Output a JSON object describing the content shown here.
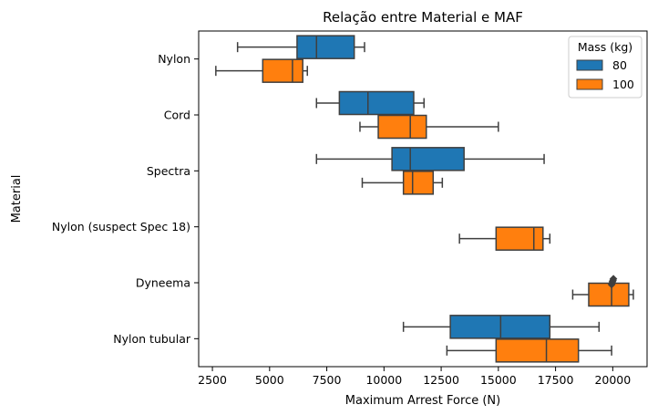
{
  "chart_data": {
    "type": "box",
    "orientation": "horizontal",
    "title": "Relação entre Material e MAF",
    "xlabel": "Maximum Arrest Force (N)",
    "ylabel": "Material",
    "xlim": [
      1900,
      21500
    ],
    "xticks": [
      2500,
      5000,
      7500,
      10000,
      12500,
      15000,
      17500,
      20000
    ],
    "categories": [
      "Nylon",
      "Cord",
      "Spectra",
      "Nylon (suspect Spec 18)",
      "Dyneema",
      "Nylon tubular"
    ],
    "legend": {
      "title": "Mass (kg)",
      "placement": "top-right"
    },
    "series": [
      {
        "name": "80",
        "color": "#1f77b4",
        "boxes": [
          {
            "category": "Nylon",
            "whisker_low": 3600,
            "q1": 6200,
            "median": 7050,
            "q3": 8700,
            "whisker_high": 9150
          },
          {
            "category": "Cord",
            "whisker_low": 7050,
            "q1": 8050,
            "median": 9300,
            "q3": 11300,
            "whisker_high": 11750
          },
          {
            "category": "Spectra",
            "whisker_low": 7050,
            "q1": 10350,
            "median": 11150,
            "q3": 13500,
            "whisker_high": 17000
          },
          {
            "category": "Nylon tubular",
            "whisker_low": 10850,
            "q1": 12900,
            "median": 15100,
            "q3": 17250,
            "whisker_high": 19400
          }
        ]
      },
      {
        "name": "100",
        "color": "#ff7f0e",
        "boxes": [
          {
            "category": "Nylon",
            "whisker_low": 2650,
            "q1": 4700,
            "median": 6000,
            "q3": 6450,
            "whisker_high": 6650
          },
          {
            "category": "Cord",
            "whisker_low": 8950,
            "q1": 9750,
            "median": 11150,
            "q3": 11850,
            "whisker_high": 15000
          },
          {
            "category": "Spectra",
            "whisker_low": 9050,
            "q1": 10850,
            "median": 11250,
            "q3": 12150,
            "whisker_high": 12550
          },
          {
            "category": "Nylon (suspect Spec 18)",
            "whisker_low": 13300,
            "q1": 14900,
            "median": 16550,
            "q3": 16950,
            "whisker_high": 17250
          },
          {
            "category": "Dyneema",
            "whisker_low": 18250,
            "q1": 18950,
            "median": 19950,
            "q3": 20700,
            "whisker_high": 20900,
            "outliers": [
              19950,
              19970,
              19990,
              20010,
              20030
            ]
          },
          {
            "category": "Nylon tubular",
            "whisker_low": 12750,
            "q1": 14900,
            "median": 17100,
            "q3": 18500,
            "whisker_high": 19950
          }
        ]
      }
    ]
  }
}
